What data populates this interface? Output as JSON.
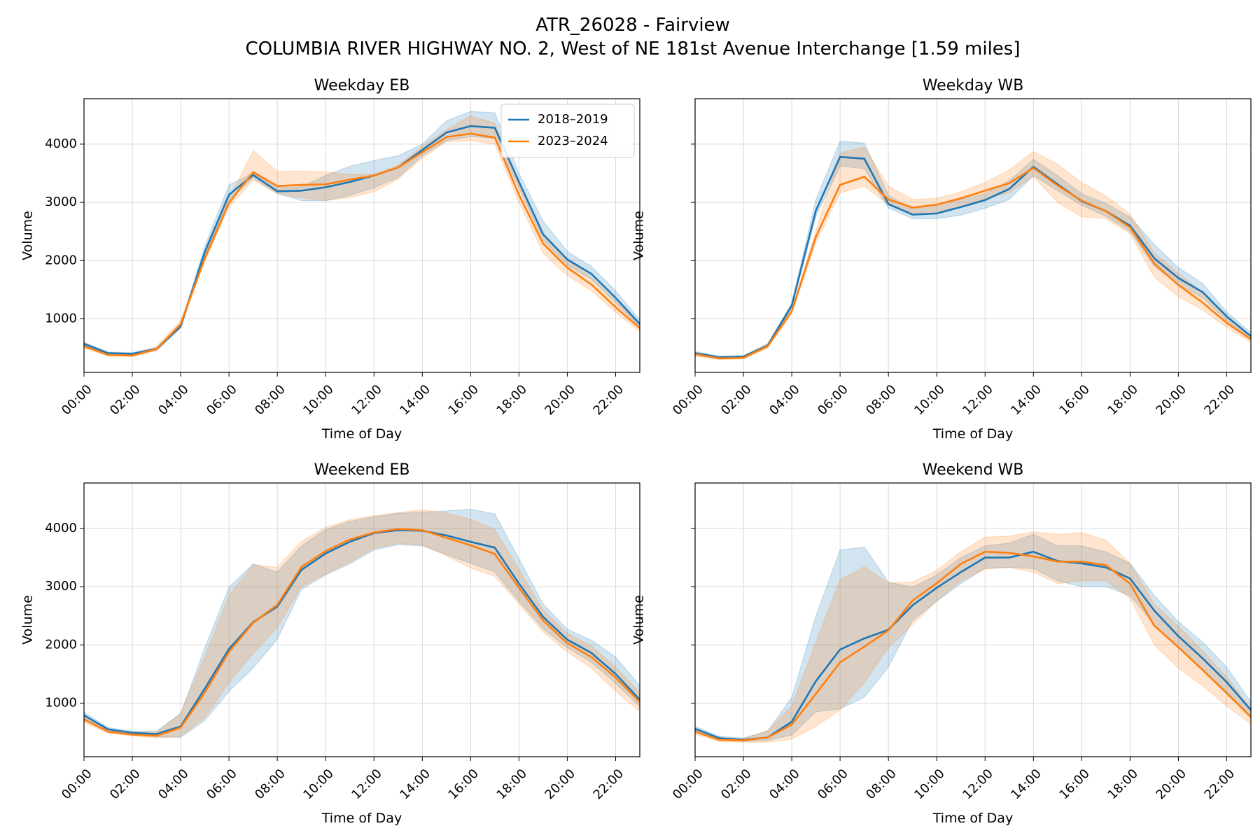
{
  "figure": {
    "title_line1": "ATR_26028 - Fairview",
    "title_line2": "COLUMBIA RIVER HIGHWAY NO. 2, West of NE 181st Avenue Interchange [1.59 miles]"
  },
  "legend": {
    "placement": "upper right of first panel",
    "entries": [
      "2018–2019",
      "2023–2024"
    ]
  },
  "colors": {
    "series_2018_2019": "#1f77b4",
    "series_2023_2024": "#ff7f0e",
    "band_2018_2019": "#1f77b4",
    "band_2023_2024": "#ff7f0e",
    "grid": "#d9d9d9"
  },
  "chart_data": [
    {
      "type": "line",
      "title": "Weekday EB",
      "xlabel": "Time of Day",
      "ylabel": "Volume",
      "xlim": [
        0,
        23
      ],
      "ylim": [
        80,
        4780
      ],
      "grid": true,
      "x_tick_labels": [
        "00:00",
        "02:00",
        "04:00",
        "06:00",
        "08:00",
        "10:00",
        "12:00",
        "14:00",
        "16:00",
        "18:00",
        "20:00",
        "22:00"
      ],
      "y_tick_labels": [
        "1000",
        "2000",
        "3000",
        "4000"
      ],
      "series": [
        {
          "name": "2018–2019",
          "values": [
            570,
            410,
            400,
            480,
            870,
            2150,
            3130,
            3470,
            3190,
            3200,
            3260,
            3350,
            3460,
            3600,
            3900,
            4200,
            4310,
            4280,
            3350,
            2450,
            2020,
            1770,
            1360,
            910
          ],
          "lower": [
            540,
            390,
            380,
            450,
            840,
            2080,
            3050,
            3420,
            3150,
            3030,
            3030,
            3120,
            3250,
            3430,
            3800,
            4060,
            4130,
            4100,
            3250,
            2350,
            1920,
            1680,
            1280,
            850
          ],
          "upper": [
            600,
            430,
            420,
            510,
            900,
            2250,
            3300,
            3500,
            3250,
            3270,
            3460,
            3620,
            3720,
            3800,
            4000,
            4400,
            4560,
            4540,
            3500,
            2680,
            2160,
            1900,
            1480,
            980
          ]
        },
        {
          "name": "2023–2024",
          "values": [
            530,
            380,
            370,
            480,
            910,
            2040,
            2990,
            3520,
            3280,
            3300,
            3310,
            3390,
            3460,
            3600,
            3860,
            4120,
            4180,
            4110,
            3130,
            2290,
            1880,
            1590,
            1200,
            840
          ],
          "lower": [
            500,
            360,
            350,
            460,
            880,
            1990,
            2920,
            3380,
            3150,
            3080,
            3030,
            3080,
            3180,
            3400,
            3760,
            4040,
            4060,
            4000,
            3000,
            2130,
            1740,
            1480,
            1110,
            780
          ],
          "upper": [
            570,
            410,
            400,
            520,
            970,
            2100,
            3060,
            3890,
            3530,
            3540,
            3520,
            3480,
            3480,
            3640,
            3960,
            4250,
            4480,
            4360,
            3330,
            2450,
            2010,
            1710,
            1310,
            910
          ]
        }
      ]
    },
    {
      "type": "line",
      "title": "Weekday WB",
      "xlabel": "Time of Day",
      "ylabel": "Volume",
      "xlim": [
        0,
        23
      ],
      "ylim": [
        80,
        4780
      ],
      "grid": true,
      "x_tick_labels": [
        "00:00",
        "02:00",
        "04:00",
        "06:00",
        "08:00",
        "10:00",
        "12:00",
        "14:00",
        "16:00",
        "18:00",
        "20:00",
        "22:00"
      ],
      "y_tick_labels": [],
      "series": [
        {
          "name": "2018–2019",
          "values": [
            410,
            340,
            350,
            540,
            1230,
            2860,
            3780,
            3750,
            2970,
            2790,
            2810,
            2920,
            3040,
            3230,
            3610,
            3310,
            3020,
            2850,
            2600,
            2040,
            1700,
            1460,
            1040,
            700
          ],
          "lower": [
            380,
            320,
            330,
            510,
            1190,
            2760,
            3620,
            3580,
            2900,
            2720,
            2720,
            2780,
            2900,
            3050,
            3460,
            3200,
            2950,
            2760,
            2500,
            1900,
            1590,
            1360,
            970,
            650
          ],
          "upper": [
            440,
            360,
            370,
            570,
            1270,
            3050,
            4050,
            4020,
            3120,
            2880,
            2960,
            3050,
            3150,
            3370,
            3740,
            3460,
            3150,
            2980,
            2750,
            2280,
            1880,
            1610,
            1120,
            760
          ]
        },
        {
          "name": "2023–2024",
          "values": [
            390,
            320,
            330,
            530,
            1130,
            2410,
            3300,
            3440,
            3050,
            2910,
            2960,
            3070,
            3200,
            3330,
            3590,
            3290,
            3030,
            2850,
            2570,
            1950,
            1580,
            1280,
            930,
            650
          ],
          "lower": [
            360,
            300,
            310,
            500,
            1090,
            2320,
            3160,
            3280,
            2960,
            2820,
            2840,
            2920,
            3060,
            3170,
            3440,
            3000,
            2750,
            2720,
            2460,
            1720,
            1380,
            1150,
            850,
            600
          ],
          "upper": [
            420,
            350,
            360,
            570,
            1170,
            2520,
            3850,
            3950,
            3280,
            3050,
            3070,
            3180,
            3340,
            3560,
            3870,
            3660,
            3340,
            3110,
            2800,
            2130,
            1780,
            1450,
            1020,
            710
          ]
        }
      ]
    },
    {
      "type": "line",
      "title": "Weekend EB",
      "xlabel": "Time of Day",
      "ylabel": "Volume",
      "xlim": [
        0,
        23
      ],
      "ylim": [
        80,
        4780
      ],
      "grid": true,
      "x_tick_labels": [
        "00:00",
        "02:00",
        "04:00",
        "06:00",
        "08:00",
        "10:00",
        "12:00",
        "14:00",
        "16:00",
        "18:00",
        "20:00",
        "22:00"
      ],
      "y_tick_labels": [
        "1000",
        "2000",
        "3000",
        "4000"
      ],
      "series": [
        {
          "name": "2018–2019",
          "values": [
            790,
            550,
            490,
            470,
            600,
            1250,
            1930,
            2390,
            2660,
            3290,
            3570,
            3770,
            3920,
            3970,
            3960,
            3880,
            3770,
            3670,
            3050,
            2480,
            2090,
            1860,
            1500,
            1060
          ],
          "lower": [
            740,
            520,
            460,
            420,
            410,
            700,
            1200,
            1600,
            2100,
            2950,
            3200,
            3390,
            3630,
            3720,
            3700,
            3550,
            3400,
            3250,
            2750,
            2280,
            1950,
            1700,
            1340,
            940
          ],
          "upper": [
            840,
            580,
            520,
            520,
            820,
            1950,
            2990,
            3390,
            3250,
            3700,
            3980,
            4120,
            4200,
            4260,
            4280,
            4300,
            4330,
            4250,
            3480,
            2700,
            2270,
            2080,
            1790,
            1300
          ]
        },
        {
          "name": "2023–2024",
          "values": [
            720,
            510,
            460,
            440,
            580,
            1180,
            1880,
            2380,
            2690,
            3340,
            3610,
            3810,
            3930,
            3990,
            3970,
            3840,
            3710,
            3560,
            2980,
            2420,
            2030,
            1790,
            1440,
            1020
          ],
          "lower": [
            670,
            480,
            440,
            400,
            430,
            750,
            1350,
            1850,
            2300,
            3000,
            3220,
            3420,
            3660,
            3740,
            3720,
            3530,
            3320,
            3180,
            2700,
            2220,
            1880,
            1600,
            1200,
            860
          ],
          "upper": [
            780,
            550,
            500,
            500,
            830,
            1800,
            2850,
            3380,
            3330,
            3780,
            4020,
            4150,
            4220,
            4270,
            4320,
            4260,
            4160,
            3980,
            3300,
            2600,
            2200,
            1980,
            1620,
            1180
          ]
        }
      ]
    },
    {
      "type": "line",
      "title": "Weekend WB",
      "xlabel": "Time of Day",
      "ylabel": "Volume",
      "xlim": [
        0,
        23
      ],
      "ylim": [
        80,
        4780
      ],
      "grid": true,
      "x_tick_labels": [
        "00:00",
        "02:00",
        "04:00",
        "06:00",
        "08:00",
        "10:00",
        "12:00",
        "14:00",
        "16:00",
        "18:00",
        "20:00",
        "22:00"
      ],
      "y_tick_labels": [],
      "series": [
        {
          "name": "2018–2019",
          "values": [
            560,
            400,
            370,
            410,
            680,
            1380,
            1920,
            2110,
            2260,
            2680,
            2980,
            3250,
            3500,
            3500,
            3600,
            3440,
            3400,
            3330,
            3140,
            2590,
            2150,
            1770,
            1360,
            880
          ],
          "lower": [
            520,
            370,
            340,
            360,
            450,
            850,
            900,
            1100,
            1620,
            2420,
            2750,
            3050,
            3320,
            3330,
            3310,
            3100,
            3000,
            3000,
            2850,
            2350,
            1950,
            1580,
            1200,
            780
          ],
          "upper": [
            600,
            430,
            400,
            520,
            1100,
            2500,
            3630,
            3680,
            3080,
            2990,
            3200,
            3500,
            3700,
            3750,
            3900,
            3700,
            3700,
            3600,
            3400,
            2850,
            2400,
            2050,
            1620,
            1020
          ]
        },
        {
          "name": "2023–2024",
          "values": [
            510,
            370,
            360,
            410,
            630,
            1160,
            1700,
            1970,
            2250,
            2760,
            3060,
            3390,
            3600,
            3580,
            3520,
            3430,
            3430,
            3370,
            3050,
            2330,
            1960,
            1570,
            1170,
            760
          ],
          "lower": [
            470,
            340,
            330,
            330,
            380,
            600,
            880,
            1350,
            1950,
            2350,
            2750,
            3100,
            3300,
            3330,
            3250,
            3050,
            3100,
            3100,
            2800,
            2000,
            1600,
            1300,
            950,
            640
          ],
          "upper": [
            550,
            400,
            390,
            530,
            950,
            2050,
            3120,
            3340,
            3060,
            3080,
            3280,
            3600,
            3850,
            3870,
            3940,
            3900,
            3930,
            3800,
            3400,
            2700,
            2320,
            1900,
            1450,
            900
          ]
        }
      ]
    }
  ]
}
